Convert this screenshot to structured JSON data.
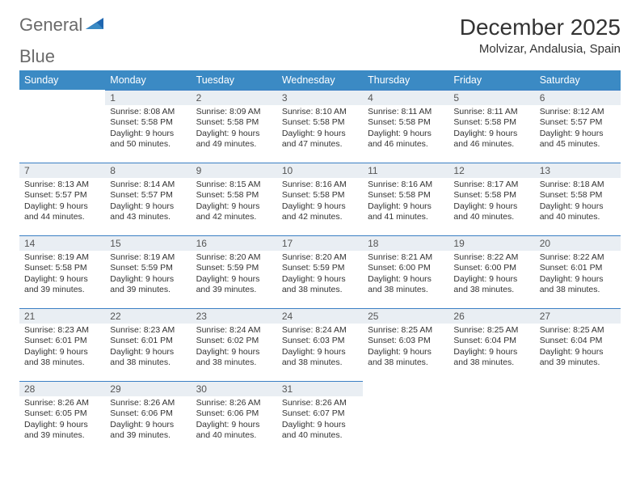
{
  "brand": {
    "name_part1": "General",
    "name_part2": "Blue"
  },
  "title": "December 2025",
  "location": "Molvizar, Andalusia, Spain",
  "colors": {
    "header_bg": "#3b8ac4",
    "header_text": "#ffffff",
    "daynum_bg": "#e9eef3",
    "rule": "#3b7fc4",
    "text": "#333333",
    "logo_gray": "#6a6a6a",
    "logo_blue": "#3b7fc4",
    "background": "#ffffff"
  },
  "weekdays": [
    "Sunday",
    "Monday",
    "Tuesday",
    "Wednesday",
    "Thursday",
    "Friday",
    "Saturday"
  ],
  "first_weekday_index": 1,
  "days": [
    {
      "n": 1,
      "sunrise": "8:08 AM",
      "sunset": "5:58 PM",
      "daylight": "9 hours and 50 minutes."
    },
    {
      "n": 2,
      "sunrise": "8:09 AM",
      "sunset": "5:58 PM",
      "daylight": "9 hours and 49 minutes."
    },
    {
      "n": 3,
      "sunrise": "8:10 AM",
      "sunset": "5:58 PM",
      "daylight": "9 hours and 47 minutes."
    },
    {
      "n": 4,
      "sunrise": "8:11 AM",
      "sunset": "5:58 PM",
      "daylight": "9 hours and 46 minutes."
    },
    {
      "n": 5,
      "sunrise": "8:11 AM",
      "sunset": "5:58 PM",
      "daylight": "9 hours and 46 minutes."
    },
    {
      "n": 6,
      "sunrise": "8:12 AM",
      "sunset": "5:57 PM",
      "daylight": "9 hours and 45 minutes."
    },
    {
      "n": 7,
      "sunrise": "8:13 AM",
      "sunset": "5:57 PM",
      "daylight": "9 hours and 44 minutes."
    },
    {
      "n": 8,
      "sunrise": "8:14 AM",
      "sunset": "5:57 PM",
      "daylight": "9 hours and 43 minutes."
    },
    {
      "n": 9,
      "sunrise": "8:15 AM",
      "sunset": "5:58 PM",
      "daylight": "9 hours and 42 minutes."
    },
    {
      "n": 10,
      "sunrise": "8:16 AM",
      "sunset": "5:58 PM",
      "daylight": "9 hours and 42 minutes."
    },
    {
      "n": 11,
      "sunrise": "8:16 AM",
      "sunset": "5:58 PM",
      "daylight": "9 hours and 41 minutes."
    },
    {
      "n": 12,
      "sunrise": "8:17 AM",
      "sunset": "5:58 PM",
      "daylight": "9 hours and 40 minutes."
    },
    {
      "n": 13,
      "sunrise": "8:18 AM",
      "sunset": "5:58 PM",
      "daylight": "9 hours and 40 minutes."
    },
    {
      "n": 14,
      "sunrise": "8:19 AM",
      "sunset": "5:58 PM",
      "daylight": "9 hours and 39 minutes."
    },
    {
      "n": 15,
      "sunrise": "8:19 AM",
      "sunset": "5:59 PM",
      "daylight": "9 hours and 39 minutes."
    },
    {
      "n": 16,
      "sunrise": "8:20 AM",
      "sunset": "5:59 PM",
      "daylight": "9 hours and 39 minutes."
    },
    {
      "n": 17,
      "sunrise": "8:20 AM",
      "sunset": "5:59 PM",
      "daylight": "9 hours and 38 minutes."
    },
    {
      "n": 18,
      "sunrise": "8:21 AM",
      "sunset": "6:00 PM",
      "daylight": "9 hours and 38 minutes."
    },
    {
      "n": 19,
      "sunrise": "8:22 AM",
      "sunset": "6:00 PM",
      "daylight": "9 hours and 38 minutes."
    },
    {
      "n": 20,
      "sunrise": "8:22 AM",
      "sunset": "6:01 PM",
      "daylight": "9 hours and 38 minutes."
    },
    {
      "n": 21,
      "sunrise": "8:23 AM",
      "sunset": "6:01 PM",
      "daylight": "9 hours and 38 minutes."
    },
    {
      "n": 22,
      "sunrise": "8:23 AM",
      "sunset": "6:01 PM",
      "daylight": "9 hours and 38 minutes."
    },
    {
      "n": 23,
      "sunrise": "8:24 AM",
      "sunset": "6:02 PM",
      "daylight": "9 hours and 38 minutes."
    },
    {
      "n": 24,
      "sunrise": "8:24 AM",
      "sunset": "6:03 PM",
      "daylight": "9 hours and 38 minutes."
    },
    {
      "n": 25,
      "sunrise": "8:25 AM",
      "sunset": "6:03 PM",
      "daylight": "9 hours and 38 minutes."
    },
    {
      "n": 26,
      "sunrise": "8:25 AM",
      "sunset": "6:04 PM",
      "daylight": "9 hours and 38 minutes."
    },
    {
      "n": 27,
      "sunrise": "8:25 AM",
      "sunset": "6:04 PM",
      "daylight": "9 hours and 39 minutes."
    },
    {
      "n": 28,
      "sunrise": "8:26 AM",
      "sunset": "6:05 PM",
      "daylight": "9 hours and 39 minutes."
    },
    {
      "n": 29,
      "sunrise": "8:26 AM",
      "sunset": "6:06 PM",
      "daylight": "9 hours and 39 minutes."
    },
    {
      "n": 30,
      "sunrise": "8:26 AM",
      "sunset": "6:06 PM",
      "daylight": "9 hours and 40 minutes."
    },
    {
      "n": 31,
      "sunrise": "8:26 AM",
      "sunset": "6:07 PM",
      "daylight": "9 hours and 40 minutes."
    }
  ],
  "labels": {
    "sunrise": "Sunrise:",
    "sunset": "Sunset:",
    "daylight": "Daylight:"
  }
}
